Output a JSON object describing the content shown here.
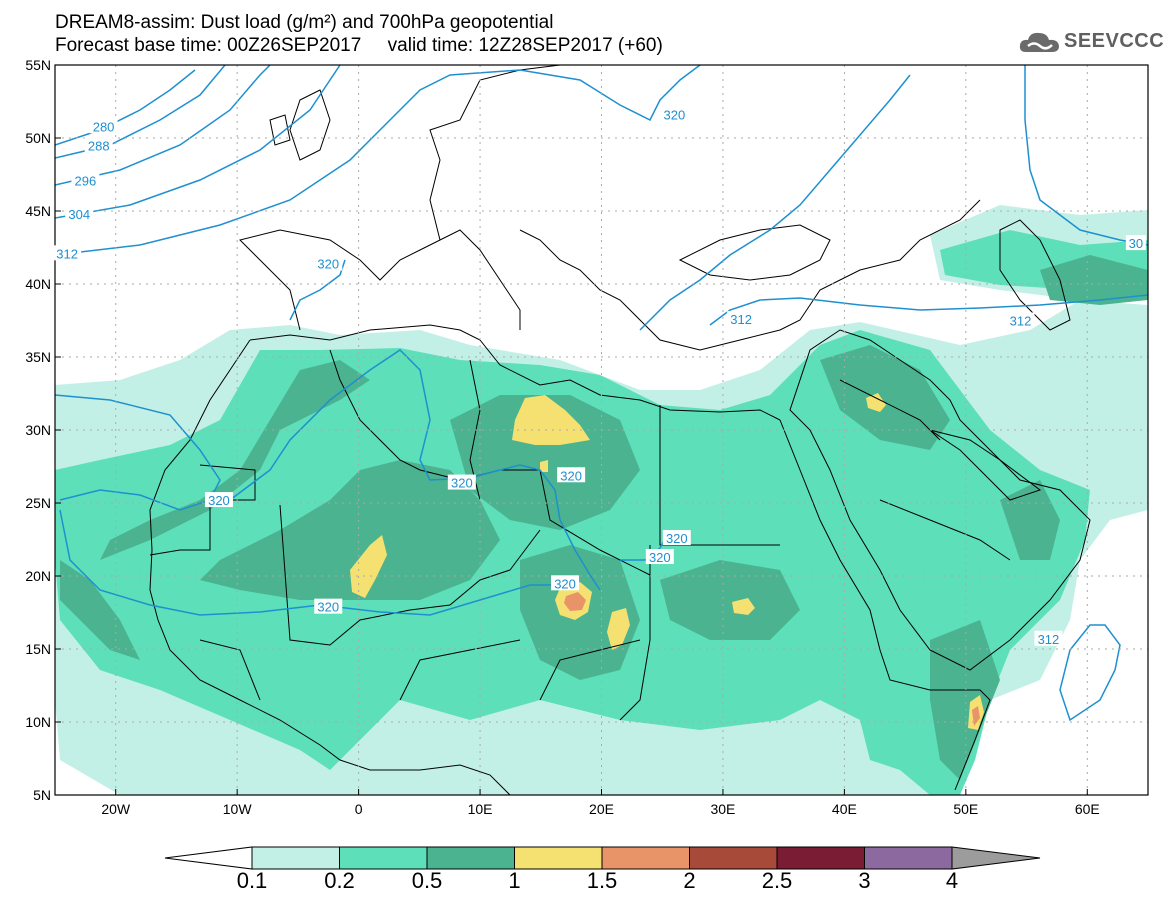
{
  "title": {
    "line1": "DREAM8-assim: Dust load (g/m²) and 700hPa geopotential",
    "line2": "Forecast base time: 00Z26SEP2017     valid time: 12Z28SEP2017 (+60)"
  },
  "logo": {
    "text": "SEEVCCC",
    "icon": "cloud-icon"
  },
  "chart_data": {
    "type": "heatmap",
    "projection": "lat-lon",
    "lon_range": [
      -25,
      65
    ],
    "lat_range": [
      5,
      55
    ],
    "lat_ticks": [
      "5N",
      "10N",
      "15N",
      "20N",
      "25N",
      "30N",
      "35N",
      "40N",
      "45N",
      "50N",
      "55N"
    ],
    "lat_values": [
      5,
      10,
      15,
      20,
      25,
      30,
      35,
      40,
      45,
      50,
      55
    ],
    "lon_ticks": [
      "20W",
      "10W",
      "0",
      "10E",
      "20E",
      "30E",
      "40E",
      "50E",
      "60E"
    ],
    "lon_values": [
      -20,
      -10,
      0,
      10,
      20,
      30,
      40,
      50,
      60
    ],
    "grid": "dotted",
    "dust_levels": [
      0.1,
      0.2,
      0.5,
      1,
      1.5,
      2,
      2.5,
      3,
      4
    ],
    "dust_level_labels": [
      "0.1",
      "0.2",
      "0.5",
      "1",
      "1.5",
      "2",
      "2.5",
      "3",
      "4"
    ],
    "dust_colors": [
      "#c3f0e6",
      "#5ddfb9",
      "#4bb38f",
      "#f5e171",
      "#e89368",
      "#a74a3a",
      "#7a1c34",
      "#8c6aa0",
      "#9c9c9c"
    ],
    "contour_color": "#1e90d0",
    "contour_labels": [
      {
        "text": "280",
        "lon": -21,
        "lat": 50.8
      },
      {
        "text": "288",
        "lon": -21.4,
        "lat": 49.5
      },
      {
        "text": "296",
        "lon": -22.5,
        "lat": 47.1
      },
      {
        "text": "304",
        "lon": -23,
        "lat": 44.8
      },
      {
        "text": "312",
        "lon": -24,
        "lat": 42.1
      },
      {
        "text": "320",
        "lon": -2.5,
        "lat": 41.4
      },
      {
        "text": "320",
        "lon": 26,
        "lat": 51.6
      },
      {
        "text": "312",
        "lon": 31.5,
        "lat": 37.6
      },
      {
        "text": "312",
        "lon": 54.5,
        "lat": 37.5
      },
      {
        "text": "30",
        "lon": 64,
        "lat": 42.8
      },
      {
        "text": "320",
        "lon": -11.5,
        "lat": 25.2
      },
      {
        "text": "320",
        "lon": 8.5,
        "lat": 26.4
      },
      {
        "text": "320",
        "lon": 17.5,
        "lat": 26.9
      },
      {
        "text": "320",
        "lon": -2.5,
        "lat": 17.9
      },
      {
        "text": "320",
        "lon": 17,
        "lat": 19.5
      },
      {
        "text": "320",
        "lon": 26.2,
        "lat": 22.6
      },
      {
        "text": "320",
        "lon": 24.8,
        "lat": 21.3
      },
      {
        "text": "312",
        "lon": 56.8,
        "lat": 15.7
      }
    ]
  }
}
